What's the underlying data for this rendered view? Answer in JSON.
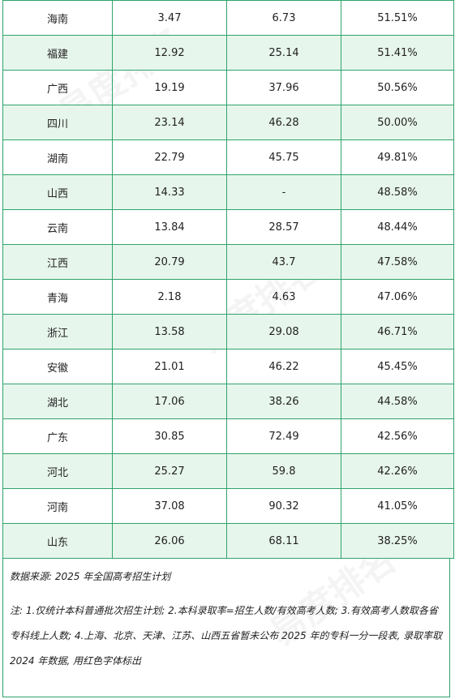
{
  "rows": [
    {
      "province": "海南",
      "a": "3.47",
      "b": "6.73",
      "rate": "51.51%"
    },
    {
      "province": "福建",
      "a": "12.92",
      "b": "25.14",
      "rate": "51.41%"
    },
    {
      "province": "广西",
      "a": "19.19",
      "b": "37.96",
      "rate": "50.56%"
    },
    {
      "province": "四川",
      "a": "23.14",
      "b": "46.28",
      "rate": "50.00%"
    },
    {
      "province": "湖南",
      "a": "22.79",
      "b": "45.75",
      "rate": "49.81%"
    },
    {
      "province": "山西",
      "a": "14.33",
      "b": "-",
      "rate": "48.58%"
    },
    {
      "province": "云南",
      "a": "13.84",
      "b": "28.57",
      "rate": "48.44%"
    },
    {
      "province": "江西",
      "a": "20.79",
      "b": "43.7",
      "rate": "47.58%"
    },
    {
      "province": "青海",
      "a": "2.18",
      "b": "4.63",
      "rate": "47.06%"
    },
    {
      "province": "浙江",
      "a": "13.58",
      "b": "29.08",
      "rate": "46.71%"
    },
    {
      "province": "安徽",
      "a": "21.01",
      "b": "46.22",
      "rate": "45.45%"
    },
    {
      "province": "湖北",
      "a": "17.06",
      "b": "38.26",
      "rate": "44.58%"
    },
    {
      "province": "广东",
      "a": "30.85",
      "b": "72.49",
      "rate": "42.56%"
    },
    {
      "province": "河北",
      "a": "25.27",
      "b": "59.8",
      "rate": "42.26%"
    },
    {
      "province": "河南",
      "a": "37.08",
      "b": "90.32",
      "rate": "41.05%"
    },
    {
      "province": "山东",
      "a": "26.06",
      "b": "68.11",
      "rate": "38.25%"
    }
  ],
  "colors": {
    "border": "#2fa36b",
    "alt_row": "#e7f6ec",
    "highlight_red": "#e03131"
  },
  "notes": {
    "source": "数据来源: 2025 年全国高考招生计划",
    "remark": "注: 1.仅统计本科普通批次招生计划; 2.本科录取率=招生人数/有效高考人数; 3.有效高考人数取各省专科线上人数; 4.上海、北京、天津、江苏、山西五省暂未公布 2025 年的专科一分一段表, 录取率取 2024 年数据, 用红色字体标出"
  },
  "watermark": "易度排名"
}
